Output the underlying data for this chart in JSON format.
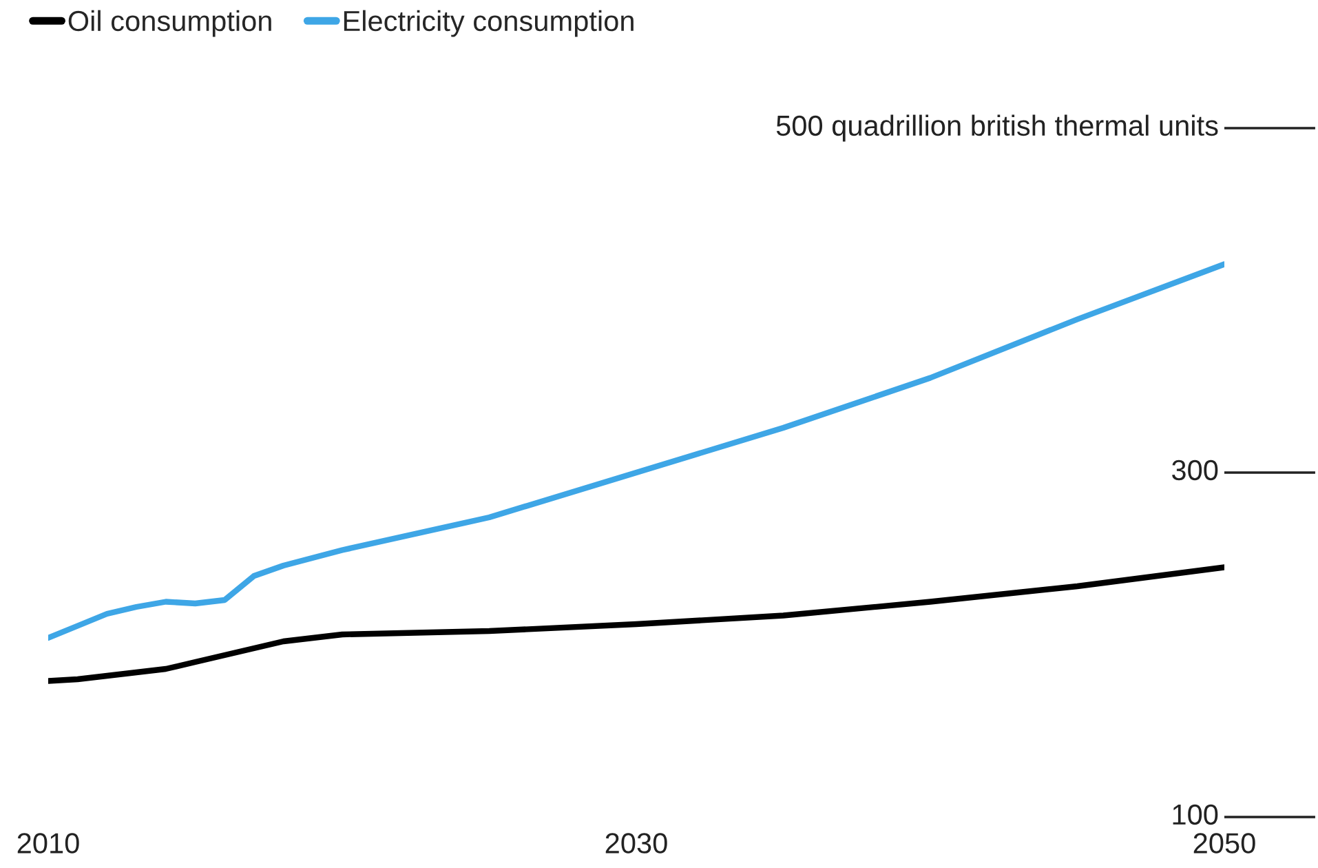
{
  "chart_data": {
    "type": "line",
    "x": [
      2010,
      2011,
      2012,
      2013,
      2014,
      2015,
      2016,
      2017,
      2018,
      2019,
      2020,
      2025,
      2030,
      2035,
      2040,
      2045,
      2050
    ],
    "series": [
      {
        "name": "Oil consumption",
        "color": "#000000",
        "values": [
          179,
          180,
          182,
          184,
          186,
          190,
          194,
          198,
          202,
          204,
          206,
          208,
          212,
          217,
          225,
          234,
          245
        ]
      },
      {
        "name": "Electricity consumption",
        "color": "#3ea6e6",
        "x": [
          2010,
          2011,
          2012,
          2013,
          2014,
          2015,
          2016,
          2017,
          2018,
          2020,
          2025,
          2030,
          2035,
          2040,
          2045,
          2050
        ],
        "values": [
          204,
          211,
          218,
          222,
          225,
          224,
          226,
          240,
          246,
          255,
          274,
          300,
          326,
          355,
          389,
          421
        ]
      }
    ],
    "xlim": [
      2010,
      2050
    ],
    "xticks": [
      2010,
      2030,
      2050
    ],
    "ylim": [
      100,
      500
    ],
    "yticks": [
      100,
      300,
      {
        "value": 500,
        "label": "500 quadrillion british thermal units"
      }
    ],
    "grid": false,
    "legend": "top left",
    "line_style": "solid",
    "marker": "none"
  }
}
